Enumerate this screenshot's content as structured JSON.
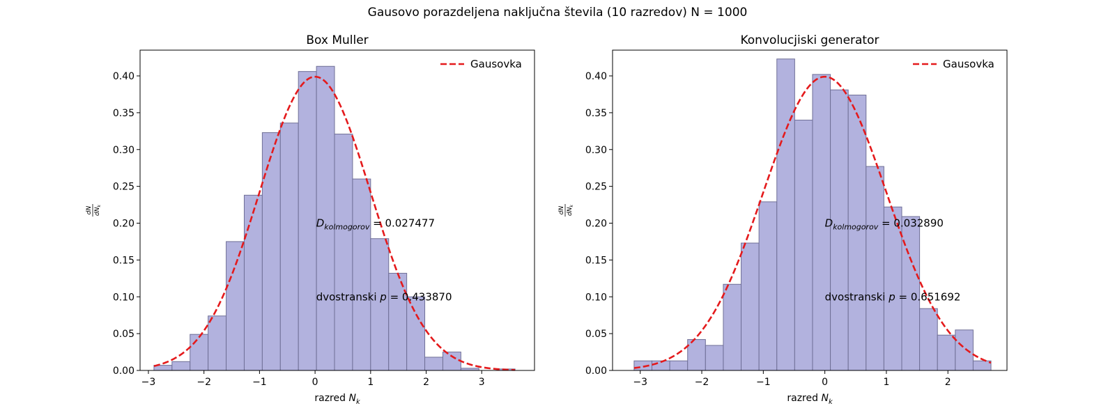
{
  "suptitle": "Gausovo porazdeljena naključna števila (10 razredov) N = 1000",
  "colors": {
    "bar_fill": "#b2b2de",
    "bar_edge": "#6f6f96",
    "curve": "#e41a1c"
  },
  "chart_data": [
    {
      "type": "bar",
      "title": "Box Muller",
      "xlabel": "razred N_k",
      "ylabel": "dN/dN_k",
      "xlim": [
        -3.15,
        3.95
      ],
      "ylim": [
        0,
        0.435
      ],
      "xticks": [
        -3,
        -2,
        -1,
        0,
        1,
        2,
        3
      ],
      "yticks": [
        0.0,
        0.05,
        0.1,
        0.15,
        0.2,
        0.25,
        0.3,
        0.35,
        0.4
      ],
      "bin_edges": [
        -2.9,
        -2.575,
        -2.25,
        -1.925,
        -1.6,
        -1.275,
        -0.95,
        -0.625,
        -0.3,
        0.025,
        0.35,
        0.675,
        1.0,
        1.325,
        1.65,
        1.975,
        2.3,
        2.625,
        2.95,
        3.275,
        3.6
      ],
      "values": [
        0.007,
        0.012,
        0.049,
        0.074,
        0.175,
        0.238,
        0.323,
        0.336,
        0.406,
        0.413,
        0.321,
        0.26,
        0.179,
        0.132,
        0.1,
        0.018,
        0.025,
        0.003,
        0.0,
        0.002
      ],
      "legend": {
        "label": "Gausovka",
        "placement": "top-right"
      },
      "annotations": {
        "d_label": "D_kolmogorov",
        "d_value": "= 0.027477",
        "p_label": "dvostranski p",
        "p_value": "= 0.433870"
      },
      "annot_pos": {
        "d": [
          0.02,
          0.2
        ],
        "p": [
          0.02,
          0.1
        ]
      },
      "curve_range": [
        -2.9,
        3.6
      ]
    },
    {
      "type": "bar",
      "title": "Konvolucjiski generator",
      "xlabel": "razred N_k",
      "ylabel": "dN/dN_k",
      "xlim": [
        -3.45,
        2.96
      ],
      "ylim": [
        0,
        0.435
      ],
      "xticks": [
        -3,
        -2,
        -1,
        0,
        1,
        2
      ],
      "yticks": [
        0.0,
        0.05,
        0.1,
        0.15,
        0.2,
        0.25,
        0.3,
        0.35,
        0.4
      ],
      "bin_edges": [
        -3.1,
        -2.81,
        -2.52,
        -2.23,
        -1.94,
        -1.65,
        -1.36,
        -1.07,
        -0.78,
        -0.49,
        -0.2,
        0.09,
        0.38,
        0.67,
        0.96,
        1.25,
        1.54,
        1.83,
        2.12,
        2.41,
        2.7
      ],
      "values": [
        0.013,
        0.013,
        0.013,
        0.042,
        0.034,
        0.117,
        0.173,
        0.229,
        0.423,
        0.34,
        0.402,
        0.381,
        0.374,
        0.277,
        0.222,
        0.209,
        0.084,
        0.048,
        0.055,
        0.013
      ],
      "legend": {
        "label": "Gausovka",
        "placement": "top-right"
      },
      "annotations": {
        "d_label": "D_kolmogorov",
        "d_value": "= 0.032890",
        "p_label": "dvostranski p",
        "p_value": "= 0.651692"
      },
      "annot_pos": {
        "d": [
          0.0,
          0.2
        ],
        "p": [
          0.0,
          0.1
        ]
      },
      "curve_range": [
        -3.1,
        2.7
      ]
    }
  ]
}
